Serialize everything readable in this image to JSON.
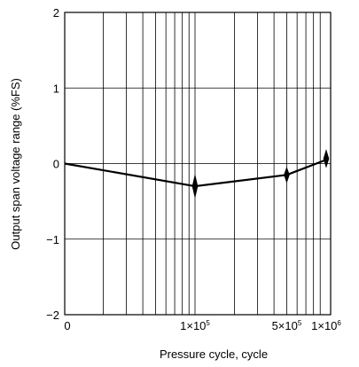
{
  "chart_data": {
    "type": "line",
    "title": "",
    "xlabel": "Pressure cycle, cycle",
    "ylabel": "Output span voltage range (%FS)",
    "x_scale": "log",
    "xlim": [
      0,
      1000000
    ],
    "ylim": [
      -2,
      2
    ],
    "grid": true,
    "x_ticks": [
      {
        "value": 0,
        "label": "0"
      },
      {
        "value": 100000,
        "label": "1×10",
        "exp": "5"
      },
      {
        "value": 500000,
        "label": "5×10",
        "exp": "5"
      },
      {
        "value": 1000000,
        "label": "1×10",
        "exp": "6"
      }
    ],
    "y_ticks": [
      {
        "value": 2,
        "label": "2"
      },
      {
        "value": 1,
        "label": "1"
      },
      {
        "value": 0,
        "label": "0"
      },
      {
        "value": -1,
        "label": "−1"
      },
      {
        "value": -2,
        "label": "−2"
      }
    ],
    "series": [
      {
        "x": [
          0,
          100000,
          500000,
          1000000
        ],
        "y": [
          0,
          -0.3,
          -0.15,
          0.05
        ],
        "error_range": [
          [
            0,
            0
          ],
          [
            -0.45,
            -0.15
          ],
          [
            -0.25,
            -0.05
          ],
          [
            -0.05,
            0.18
          ]
        ]
      }
    ],
    "colors": {
      "line": "#000000",
      "grid": "#000000",
      "text": "#000000"
    }
  }
}
